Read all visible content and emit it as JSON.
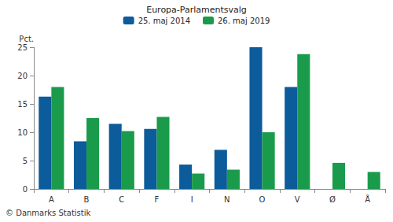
{
  "chart_data": {
    "type": "bar",
    "title": "Europa-Parlamentsvalg",
    "y_label": "Pct.",
    "source": "© Danmarks Statistik",
    "categories": [
      "A",
      "B",
      "C",
      "F",
      "I",
      "N",
      "O",
      "V",
      "Ø",
      "Å"
    ],
    "series": [
      {
        "name": "25. maj 2014",
        "color": "#0c5b9b",
        "values": [
          16.3,
          8.4,
          11.5,
          10.6,
          4.3,
          6.9,
          25.0,
          18.0,
          null,
          null
        ]
      },
      {
        "name": "26. maj 2019",
        "color": "#1a9b4b",
        "values": [
          18.0,
          12.5,
          10.2,
          12.7,
          2.7,
          3.4,
          10.0,
          23.8,
          4.6,
          3.0
        ]
      }
    ],
    "ylim": [
      0,
      25
    ],
    "yticks": [
      0,
      5,
      10,
      15,
      20,
      25
    ],
    "grid": false,
    "legend": "top"
  }
}
